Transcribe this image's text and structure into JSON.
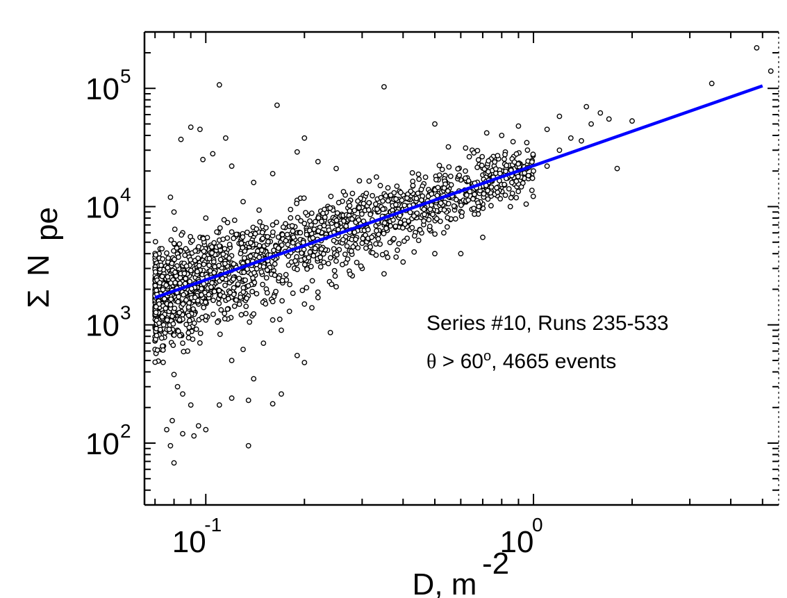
{
  "chart_data": {
    "type": "scatter",
    "x_scale": "log",
    "y_scale": "log",
    "xlim": [
      0.065,
      5.6
    ],
    "ylim": [
      30,
      300000
    ],
    "grid": false,
    "xlabel": {
      "base": "D, m",
      "exponent": "-2"
    },
    "ylabel": {
      "sigma": "Σ",
      "base": "N",
      "subscript": "pe"
    },
    "x_ticks": [
      {
        "value": 0.1,
        "base": "10",
        "exponent": "-1"
      },
      {
        "value": 1,
        "base": "10",
        "exponent": "0"
      }
    ],
    "y_ticks": [
      {
        "value": 100,
        "base": "10",
        "exponent": "2"
      },
      {
        "value": 1000,
        "base": "10",
        "exponent": "3"
      },
      {
        "value": 10000,
        "base": "10",
        "exponent": "4"
      },
      {
        "value": 100000,
        "base": "10",
        "exponent": "5"
      }
    ],
    "annotations": [
      "Series #10, Runs 235-533",
      {
        "theta": "θ",
        "rest_before_sup": " > 60",
        "sup": "o",
        "rest": ", 4665 events"
      }
    ],
    "fit_line": {
      "color": "#0000ff",
      "x": [
        0.07,
        5.0
      ],
      "y": [
        1700,
        105000
      ]
    },
    "scatter_series": {
      "name": "events",
      "marker": "open-circle",
      "color": "#000000",
      "count_total": 4665,
      "points": [
        [
          0.084,
          37000
        ],
        [
          0.09,
          47000
        ],
        [
          0.096,
          45000
        ],
        [
          0.11,
          107000
        ],
        [
          0.165,
          72000
        ],
        [
          0.35,
          103000
        ],
        [
          0.115,
          38000
        ],
        [
          0.105,
          28000
        ],
        [
          0.098,
          25000
        ],
        [
          0.12,
          22000
        ],
        [
          0.19,
          29000
        ],
        [
          0.2,
          38000
        ],
        [
          0.22,
          24000
        ],
        [
          0.14,
          16000
        ],
        [
          0.16,
          19000
        ],
        [
          0.25,
          21000
        ],
        [
          0.078,
          12000
        ],
        [
          0.08,
          9000
        ],
        [
          0.1,
          8000
        ],
        [
          0.13,
          11000
        ],
        [
          0.085,
          6000
        ],
        [
          0.09,
          5000
        ],
        [
          0.095,
          3500
        ],
        [
          0.1,
          4500
        ],
        [
          0.11,
          5200
        ],
        [
          0.12,
          6100
        ],
        [
          0.13,
          4800
        ],
        [
          0.14,
          5600
        ],
        [
          0.15,
          6300
        ],
        [
          0.16,
          7000
        ],
        [
          0.17,
          5400
        ],
        [
          0.18,
          6800
        ],
        [
          0.2,
          7200
        ],
        [
          0.22,
          8000
        ],
        [
          0.24,
          7500
        ],
        [
          0.26,
          8600
        ],
        [
          0.28,
          9100
        ],
        [
          0.3,
          9800
        ],
        [
          0.33,
          10500
        ],
        [
          0.36,
          11200
        ],
        [
          0.4,
          12500
        ],
        [
          0.45,
          13100
        ],
        [
          0.5,
          14200
        ],
        [
          0.55,
          15500
        ],
        [
          0.6,
          16800
        ],
        [
          0.7,
          18500
        ],
        [
          0.8,
          20000
        ],
        [
          0.9,
          21000
        ],
        [
          0.075,
          2500
        ],
        [
          0.078,
          1800
        ],
        [
          0.08,
          1200
        ],
        [
          0.082,
          900
        ],
        [
          0.085,
          700
        ],
        [
          0.088,
          600
        ],
        [
          0.09,
          2000
        ],
        [
          0.095,
          1500
        ],
        [
          0.1,
          1100
        ],
        [
          0.105,
          2400
        ],
        [
          0.11,
          1800
        ],
        [
          0.12,
          2900
        ],
        [
          0.13,
          3300
        ],
        [
          0.14,
          2200
        ],
        [
          0.15,
          3100
        ],
        [
          0.16,
          3800
        ],
        [
          0.18,
          4200
        ],
        [
          0.2,
          3600
        ],
        [
          0.22,
          4500
        ],
        [
          0.25,
          5000
        ],
        [
          0.28,
          5500
        ],
        [
          0.3,
          4900
        ],
        [
          0.35,
          6200
        ],
        [
          0.4,
          7000
        ],
        [
          0.45,
          6400
        ],
        [
          0.5,
          8200
        ],
        [
          0.6,
          9100
        ],
        [
          0.7,
          10500
        ],
        [
          0.08,
          380
        ],
        [
          0.082,
          300
        ],
        [
          0.085,
          260
        ],
        [
          0.09,
          210
        ],
        [
          0.095,
          140
        ],
        [
          0.1,
          130
        ],
        [
          0.078,
          95
        ],
        [
          0.08,
          68
        ],
        [
          0.076,
          130
        ],
        [
          0.079,
          155
        ],
        [
          0.085,
          120
        ],
        [
          0.092,
          115
        ],
        [
          0.11,
          210
        ],
        [
          0.12,
          240
        ],
        [
          0.135,
          230
        ],
        [
          0.16,
          215
        ],
        [
          0.17,
          260
        ],
        [
          0.19,
          550
        ],
        [
          0.2,
          480
        ],
        [
          0.24,
          860
        ],
        [
          0.135,
          95
        ],
        [
          0.14,
          350
        ],
        [
          0.12,
          500
        ],
        [
          0.13,
          620
        ],
        [
          0.15,
          700
        ],
        [
          0.17,
          900
        ],
        [
          0.16,
          1100
        ],
        [
          0.18,
          1300
        ],
        [
          0.2,
          1500
        ],
        [
          0.22,
          1700
        ],
        [
          0.25,
          2100
        ],
        [
          0.28,
          2600
        ],
        [
          0.3,
          3000
        ],
        [
          0.35,
          2700
        ],
        [
          0.4,
          3400
        ],
        [
          0.5,
          4000
        ],
        [
          0.6,
          4000
        ],
        [
          0.7,
          5500
        ],
        [
          1.0,
          20000
        ],
        [
          1.1,
          22000
        ],
        [
          1.2,
          30000
        ],
        [
          1.3,
          38000
        ],
        [
          1.5,
          50000
        ],
        [
          1.7,
          55000
        ],
        [
          2.0,
          53000
        ],
        [
          1.45,
          70000
        ],
        [
          1.6,
          62000
        ],
        [
          1.2,
          58000
        ],
        [
          1.1,
          45000
        ],
        [
          0.9,
          48000
        ],
        [
          0.8,
          40000
        ],
        [
          0.72,
          42000
        ],
        [
          0.65,
          30000
        ],
        [
          0.55,
          32000
        ],
        [
          0.5,
          50000
        ],
        [
          1.4,
          36000
        ],
        [
          1.8,
          21000
        ],
        [
          0.85,
          10000
        ],
        [
          0.95,
          10500
        ],
        [
          3.5,
          110000
        ],
        [
          4.8,
          220000
        ],
        [
          5.3,
          140000
        ]
      ]
    }
  }
}
